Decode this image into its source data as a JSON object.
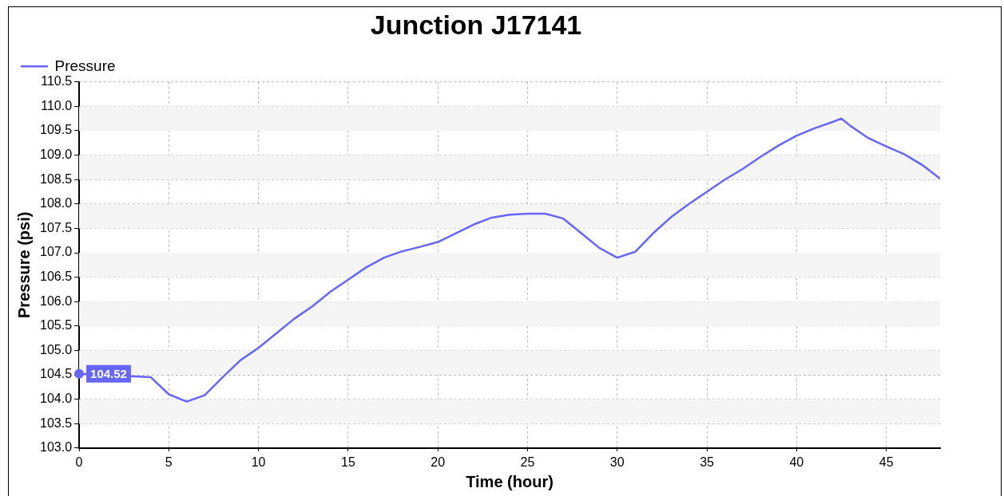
{
  "chart_data": {
    "type": "line",
    "title": "Junction J17141",
    "xlabel": "Time (hour)",
    "ylabel": "Pressure (psi)",
    "xlim": [
      0,
      48
    ],
    "xticks": [
      0,
      5,
      10,
      15,
      20,
      25,
      30,
      35,
      40,
      45
    ],
    "ylim": [
      103.0,
      110.5
    ],
    "yticks": [
      {
        "value": 103.0,
        "label": "103.0"
      },
      {
        "value": 103.5,
        "label": "103.5"
      },
      {
        "value": 104.0,
        "label": "104.0"
      },
      {
        "value": 104.5,
        "label": "104.5"
      },
      {
        "value": 105.0,
        "label": "105.0"
      },
      {
        "value": 105.5,
        "label": "105.5"
      },
      {
        "value": 106.0,
        "label": "106.0"
      },
      {
        "value": 106.5,
        "label": "106.5"
      },
      {
        "value": 107.0,
        "label": "107.0"
      },
      {
        "value": 107.5,
        "label": "107.5"
      },
      {
        "value": 108.0,
        "label": "108.0"
      },
      {
        "value": 108.5,
        "label": "108.5"
      },
      {
        "value": 109.0,
        "label": "109.0"
      },
      {
        "value": 109.5,
        "label": "109.5"
      },
      {
        "value": 110.0,
        "label": "110.0"
      },
      {
        "value": 110.5,
        "label": "110.5"
      }
    ],
    "grid": true,
    "legend": "top left",
    "marker": "none",
    "line_style": "solid",
    "annotations": [
      {
        "text": "104.52",
        "x": 0,
        "y": 104.52
      }
    ],
    "series": [
      {
        "name": "Pressure",
        "color": "#6666ff",
        "x": [
          0,
          4,
          5,
          6,
          7,
          8,
          9,
          10,
          11,
          12,
          13,
          14,
          15,
          16,
          17,
          18,
          19,
          20,
          21,
          22,
          23,
          24,
          25,
          26,
          27,
          28,
          29,
          30,
          31,
          32,
          33,
          34,
          35,
          36,
          37,
          38,
          39,
          40,
          41,
          42,
          42.5,
          43,
          44,
          45,
          46,
          47,
          48
        ],
        "values": [
          104.52,
          104.45,
          104.1,
          103.95,
          104.08,
          104.45,
          104.8,
          105.05,
          105.35,
          105.65,
          105.9,
          106.2,
          106.45,
          106.7,
          106.9,
          107.03,
          107.12,
          107.22,
          107.4,
          107.58,
          107.72,
          107.78,
          107.8,
          107.8,
          107.7,
          107.4,
          107.1,
          106.9,
          107.02,
          107.4,
          107.73,
          108.0,
          108.25,
          108.5,
          108.72,
          108.97,
          109.2,
          109.4,
          109.55,
          109.68,
          109.75,
          109.6,
          109.35,
          109.18,
          109.02,
          108.8,
          108.52
        ]
      }
    ]
  }
}
